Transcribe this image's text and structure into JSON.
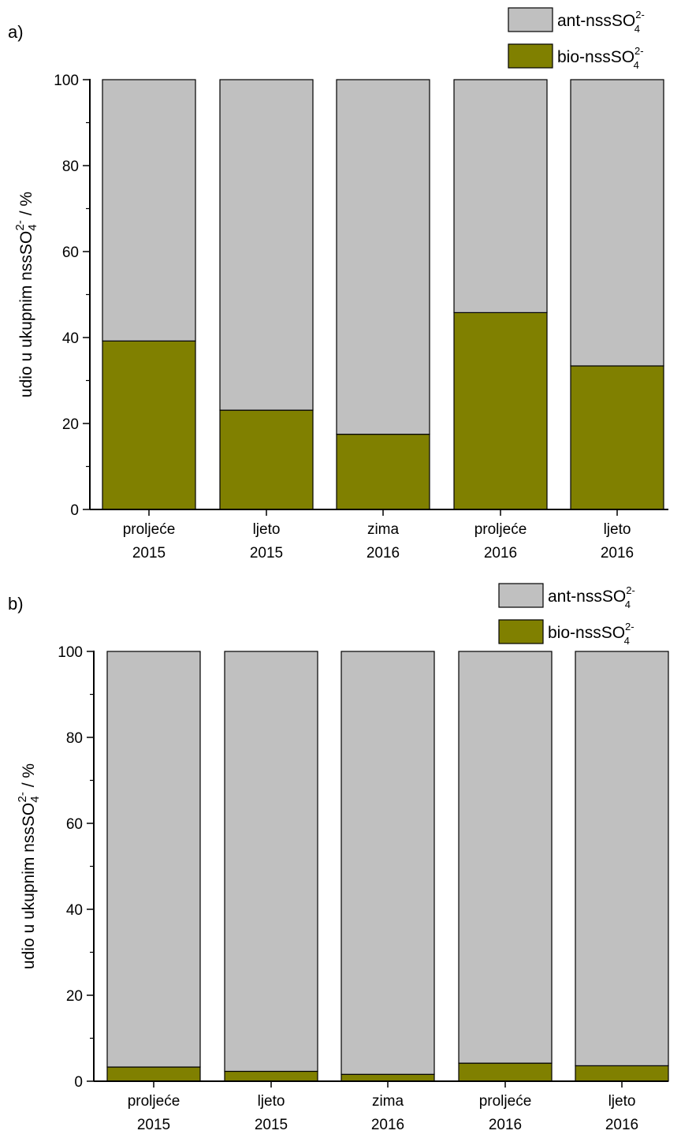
{
  "chart_data": [
    {
      "panel_label": "a)",
      "type": "bar",
      "stacked": true,
      "categories": [
        [
          "proljeće",
          "2015"
        ],
        [
          "ljeto",
          "2015"
        ],
        [
          "zima",
          "2016"
        ],
        [
          "proljeće",
          "2016"
        ],
        [
          "ljeto",
          "2016"
        ]
      ],
      "series": [
        {
          "name": "bio-nssSO42-",
          "name_base": "bio-nssSO",
          "name_sub": "4",
          "name_sup": "2-",
          "color": "#808000",
          "values": [
            39.2,
            23.1,
            17.5,
            45.8,
            33.4
          ]
        },
        {
          "name": "ant-nssSO42-",
          "name_base": "ant-nssSO",
          "name_sub": "4",
          "name_sup": "2-",
          "color": "#c0c0c0",
          "values": [
            60.8,
            76.9,
            82.5,
            54.2,
            66.6
          ]
        }
      ],
      "ylabel": "udio u ukupnim nssSO42- / %",
      "ylabel_base": "udio u ukupnim nssSO",
      "ylabel_sub": "4",
      "ylabel_sup": "2-",
      "ylabel_tail": " / %",
      "yticks": [
        "0",
        "20",
        "40",
        "60",
        "80",
        "100"
      ],
      "ylim": [
        0,
        100
      ],
      "legend_position": "top-right"
    },
    {
      "panel_label": "b)",
      "type": "bar",
      "stacked": true,
      "categories": [
        [
          "proljeće",
          "2015"
        ],
        [
          "ljeto",
          "2015"
        ],
        [
          "zima",
          "2016"
        ],
        [
          "proljeće",
          "2016"
        ],
        [
          "ljeto",
          "2016"
        ]
      ],
      "series": [
        {
          "name": "bio-nssSO42-",
          "name_base": "bio-nssSO",
          "name_sub": "4",
          "name_sup": "2-",
          "color": "#808000",
          "values": [
            3.3,
            2.3,
            1.6,
            4.2,
            3.6
          ]
        },
        {
          "name": "ant-nssSO42-",
          "name_base": "ant-nssSO",
          "name_sub": "4",
          "name_sup": "2-",
          "color": "#c0c0c0",
          "values": [
            96.7,
            97.7,
            98.4,
            95.8,
            96.4
          ]
        }
      ],
      "ylabel": "udio u ukupnim nssSO42- / %",
      "ylabel_base": "udio u ukupnim nssSO",
      "ylabel_sub": "4",
      "ylabel_sup": "2-",
      "ylabel_tail": " / %",
      "yticks": [
        "0",
        "20",
        "40",
        "60",
        "80",
        "100"
      ],
      "ylim": [
        0,
        100
      ],
      "legend_position": "top-right"
    }
  ]
}
